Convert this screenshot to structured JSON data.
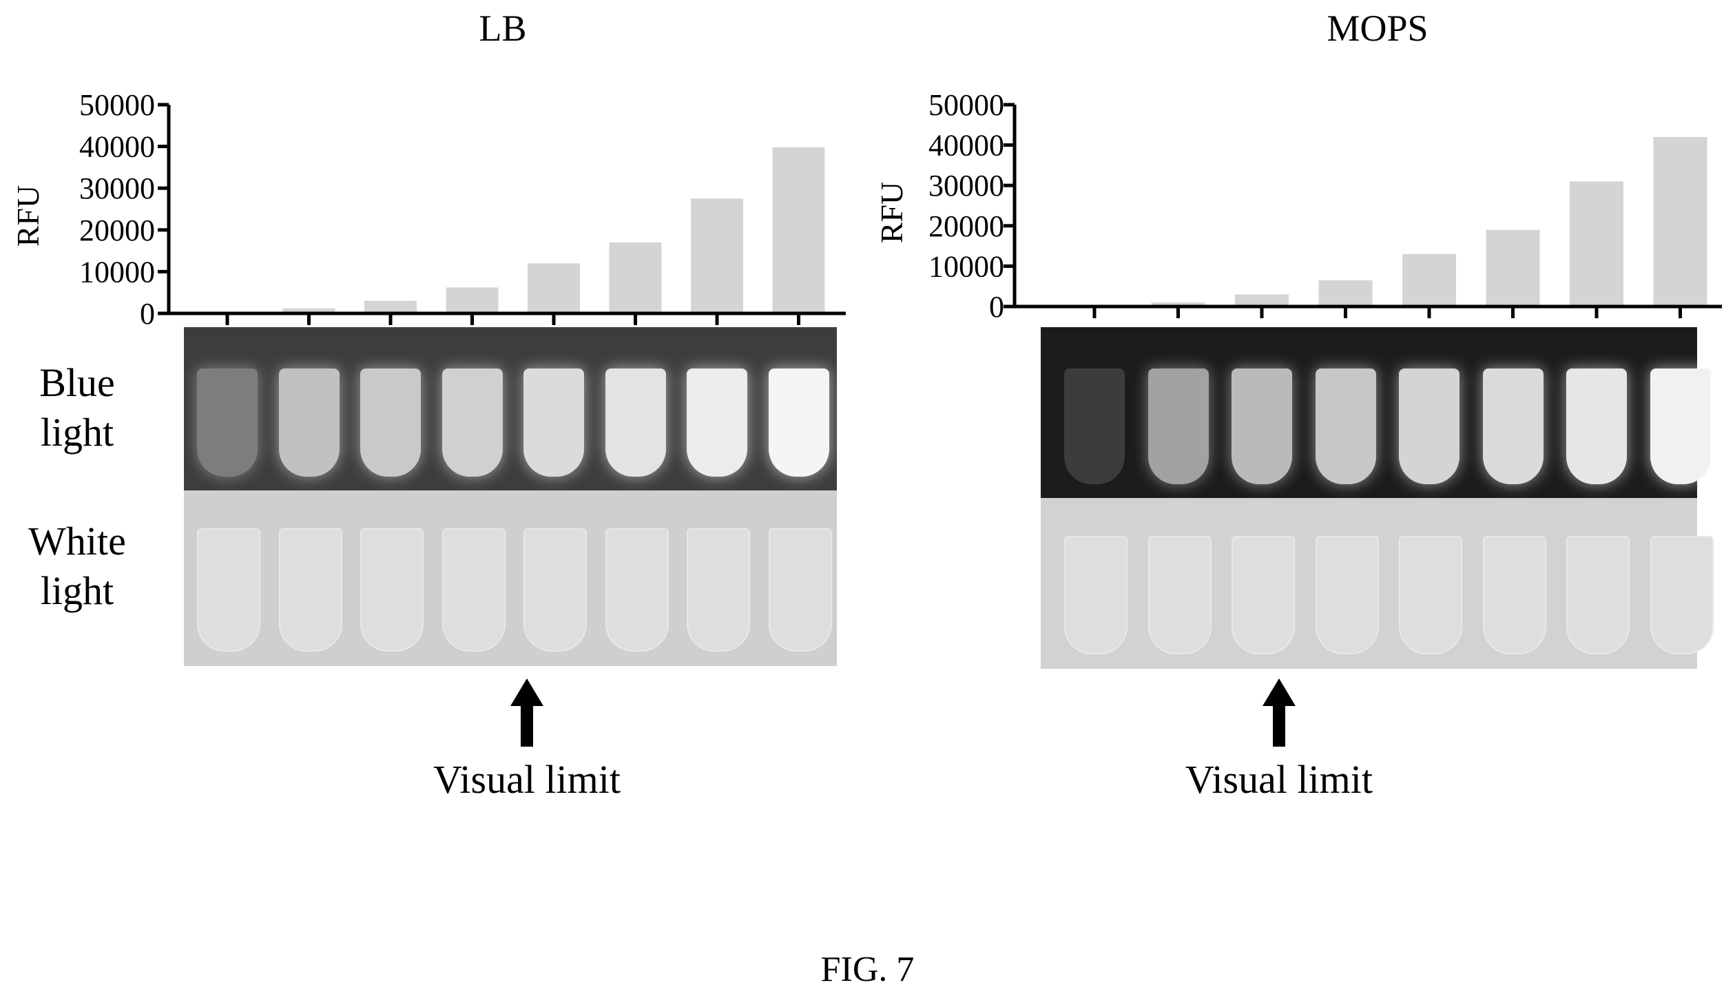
{
  "panels": [
    {
      "title": "LB",
      "chart_data": {
        "type": "bar",
        "ylabel": "RFU",
        "ylim": [
          0,
          50000
        ],
        "yticks": [
          "50000",
          "40000",
          "30000",
          "20000",
          "10000",
          "0"
        ],
        "values": [
          0,
          1200,
          3000,
          6200,
          12000,
          17000,
          27500,
          39800
        ],
        "bar_color": "#d4d4d4"
      },
      "row_labels": {
        "blue": "Blue light",
        "white": "White light"
      },
      "visual_limit": "Visual limit",
      "visual_limit_tube_index": 4,
      "tube_brightness": [
        0.35,
        0.72,
        0.76,
        0.8,
        0.86,
        0.9,
        0.95,
        1.0
      ]
    },
    {
      "title": "MOPS",
      "chart_data": {
        "type": "bar",
        "ylabel": "RFU",
        "ylim": [
          0,
          50000
        ],
        "yticks": [
          "50000",
          "40000",
          "30000",
          "20000",
          "10000",
          "0"
        ],
        "values": [
          0,
          1000,
          3000,
          6500,
          13000,
          19000,
          31000,
          42000
        ],
        "bar_color": "#d4d4d4"
      },
      "row_labels": {
        "blue": "",
        "white": ""
      },
      "visual_limit": "Visual limit",
      "visual_limit_tube_index": 2,
      "tube_brightness": [
        0.0,
        0.55,
        0.68,
        0.75,
        0.82,
        0.86,
        0.92,
        0.98
      ]
    }
  ],
  "caption": "FIG. 7"
}
